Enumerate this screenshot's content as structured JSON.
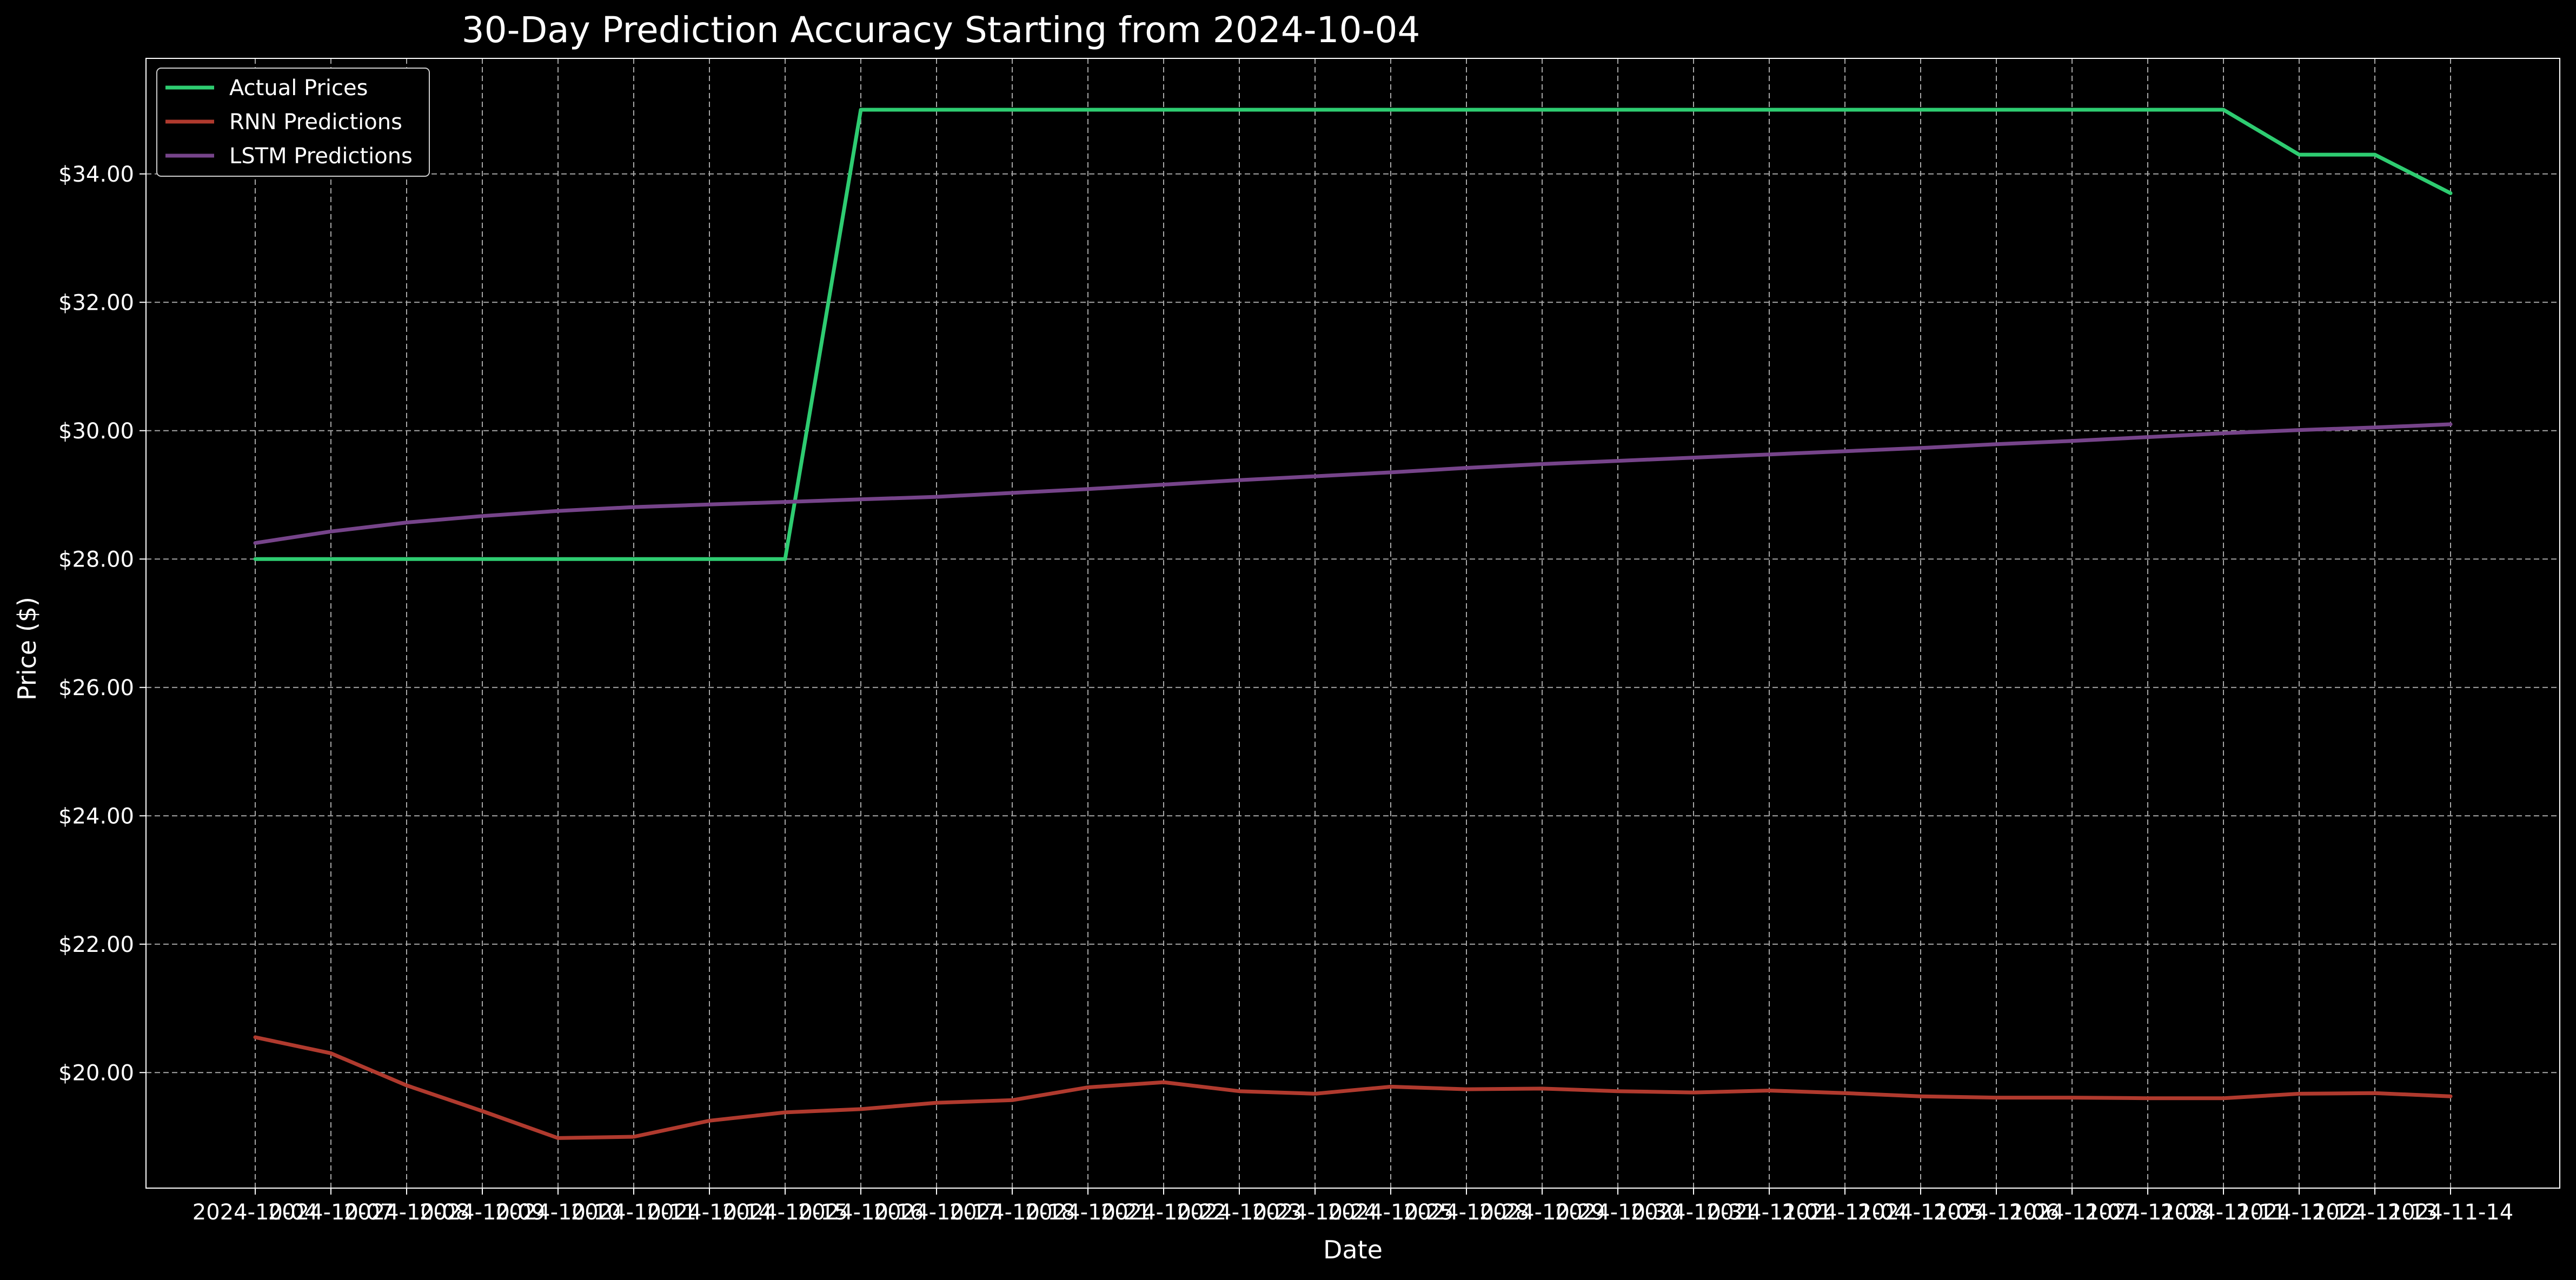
{
  "chart_data": {
    "type": "line",
    "title": "30-Day Prediction Accuracy Starting from 2024-10-04",
    "xlabel": "Date",
    "ylabel": "Price ($)",
    "ylim": [
      18.2,
      35.8
    ],
    "yticks": [
      20,
      22,
      24,
      26,
      28,
      30,
      32,
      34
    ],
    "ytick_labels": [
      "$20.00",
      "$22.00",
      "$24.00",
      "$26.00",
      "$28.00",
      "$30.00",
      "$32.00",
      "$34.00"
    ],
    "grid": true,
    "legend_position": "top-left",
    "x": [
      "2024-10-04",
      "2024-10-07",
      "2024-10-08",
      "2024-10-09",
      "2024-10-10",
      "2024-10-11",
      "2024-10-14",
      "2024-10-15",
      "2024-10-16",
      "2024-10-17",
      "2024-10-18",
      "2024-10-21",
      "2024-10-22",
      "2024-10-23",
      "2024-10-24",
      "2024-10-25",
      "2024-10-28",
      "2024-10-29",
      "2024-10-30",
      "2024-10-31",
      "2024-11-01",
      "2024-11-04",
      "2024-11-05",
      "2024-11-06",
      "2024-11-07",
      "2024-11-08",
      "2024-11-11",
      "2024-11-12",
      "2024-11-13",
      "2024-11-14"
    ],
    "series": [
      {
        "name": "Actual Prices",
        "color": "#2ecc71",
        "values": [
          28.0,
          28.0,
          28.0,
          28.0,
          28.0,
          28.0,
          28.0,
          28.0,
          35.0,
          35.0,
          35.0,
          35.0,
          35.0,
          35.0,
          35.0,
          35.0,
          35.0,
          35.0,
          35.0,
          35.0,
          35.0,
          35.0,
          35.0,
          35.0,
          35.0,
          35.0,
          35.0,
          34.3,
          34.3,
          33.7
        ]
      },
      {
        "name": "RNN Predictions",
        "color": "#b03a2e",
        "values": [
          20.55,
          20.3,
          19.8,
          19.4,
          18.98,
          19.0,
          19.25,
          19.38,
          19.43,
          19.53,
          19.57,
          19.77,
          19.85,
          19.71,
          19.67,
          19.78,
          19.74,
          19.75,
          19.71,
          19.69,
          19.72,
          19.68,
          19.63,
          19.61,
          19.61,
          19.6,
          19.6,
          19.67,
          19.68,
          19.63
        ]
      },
      {
        "name": "LSTM Predictions",
        "color": "#76448a",
        "values": [
          28.25,
          28.43,
          28.57,
          28.67,
          28.75,
          28.81,
          28.85,
          28.89,
          28.93,
          28.97,
          29.03,
          29.09,
          29.16,
          29.23,
          29.29,
          29.35,
          29.42,
          29.48,
          29.53,
          29.58,
          29.63,
          29.68,
          29.73,
          29.79,
          29.84,
          29.9,
          29.96,
          30.01,
          30.05,
          30.1
        ]
      }
    ]
  }
}
